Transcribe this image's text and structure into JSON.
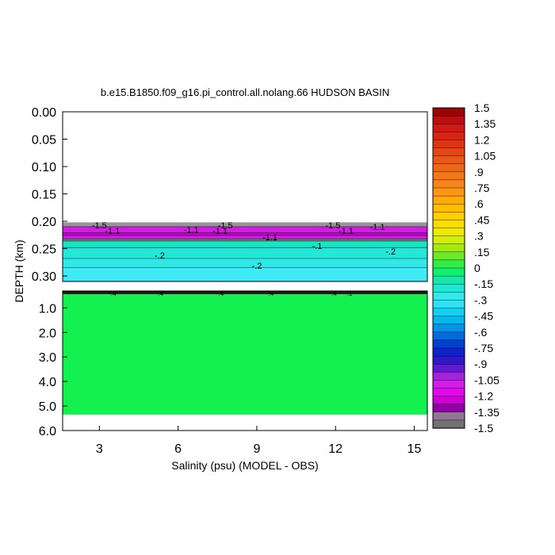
{
  "chart_data": {
    "type": "heatmap",
    "title": "b.e15.B1850.f09_g16.pi_control.all.nolang.66 HUDSON BASIN",
    "xlabel": "Salinity (psu) (MODEL - OBS)",
    "ylabel": "DEPTH (km)",
    "xlim": [
      1.6,
      15.5
    ],
    "x_ticks": [
      "3",
      "6",
      "9",
      "12",
      "15"
    ],
    "x_tick_values": [
      3,
      6,
      9,
      12,
      15
    ],
    "upper_panel": {
      "ylim": [
        0.0,
        0.31
      ],
      "y_ticks": [
        "0.00",
        "0.05",
        "0.10",
        "0.15",
        "0.20",
        "0.25",
        "0.30"
      ],
      "y_tick_values": [
        0.0,
        0.05,
        0.1,
        0.15,
        0.2,
        0.25,
        0.3
      ],
      "bands": [
        {
          "top": 0.202,
          "bottom": 0.21,
          "value": -1.4
        },
        {
          "top": 0.21,
          "bottom": 0.221,
          "value": -1.1
        },
        {
          "top": 0.221,
          "bottom": 0.226,
          "value": -1.25
        },
        {
          "top": 0.226,
          "bottom": 0.232,
          "value": -1.1
        },
        {
          "top": 0.232,
          "bottom": 0.236,
          "value": -1.45
        },
        {
          "top": 0.236,
          "bottom": 0.248,
          "value": -0.15
        },
        {
          "top": 0.248,
          "bottom": 0.268,
          "value": -0.2
        },
        {
          "top": 0.268,
          "bottom": 0.285,
          "value": -0.25
        },
        {
          "top": 0.285,
          "bottom": 0.31,
          "value": -0.3
        }
      ],
      "contour_labels": [
        {
          "x": 3.0,
          "y": 0.207,
          "text": "-1.5"
        },
        {
          "x": 3.5,
          "y": 0.217,
          "text": "-1.1"
        },
        {
          "x": 6.5,
          "y": 0.215,
          "text": "-1.1"
        },
        {
          "x": 7.8,
          "y": 0.207,
          "text": "-1.5"
        },
        {
          "x": 7.6,
          "y": 0.217,
          "text": "-1.1"
        },
        {
          "x": 9.5,
          "y": 0.229,
          "text": "-1.1"
        },
        {
          "x": 11.9,
          "y": 0.207,
          "text": "-1.5"
        },
        {
          "x": 12.4,
          "y": 0.217,
          "text": "-1.1"
        },
        {
          "x": 13.6,
          "y": 0.21,
          "text": "-1.1"
        },
        {
          "x": 5.3,
          "y": 0.262,
          "text": "-.2"
        },
        {
          "x": 9.0,
          "y": 0.281,
          "text": "-.2"
        },
        {
          "x": 14.1,
          "y": 0.255,
          "text": "-.2"
        },
        {
          "x": 11.3,
          "y": 0.245,
          "text": "-.1"
        }
      ]
    },
    "lower_panel": {
      "ylim": [
        0.31,
        6.0
      ],
      "y_ticks": [
        "1.0",
        "2.0",
        "3.0",
        "4.0",
        "5.0",
        "6.0"
      ],
      "y_tick_values": [
        1.0,
        2.0,
        3.0,
        4.0,
        5.0,
        6.0
      ],
      "fill_value": 0.0,
      "data_bottom": 5.35,
      "surface_contour_labels": [
        {
          "x": 3.5,
          "text": "-.4"
        },
        {
          "x": 5.3,
          "text": "-.4"
        },
        {
          "x": 7.6,
          "text": "-.4"
        },
        {
          "x": 9.5,
          "text": "-.4"
        },
        {
          "x": 11.9,
          "text": "-.4"
        },
        {
          "x": 12.5,
          "text": "-.1"
        }
      ]
    },
    "colorbar": {
      "range": [
        -1.5,
        1.5
      ],
      "step": 0.075,
      "labels": [
        "1.5",
        "1.35",
        "1.2",
        "1.05",
        ".9",
        ".75",
        ".6",
        ".45",
        ".3",
        ".15",
        "0",
        "-.15",
        "-.3",
        "-.45",
        "-.6",
        "-.75",
        "-.9",
        "-1.05",
        "-1.2",
        "-1.35",
        "-1.5"
      ],
      "label_values": [
        1.5,
        1.35,
        1.2,
        1.05,
        0.9,
        0.75,
        0.6,
        0.45,
        0.3,
        0.15,
        0,
        -0.15,
        -0.3,
        -0.45,
        -0.6,
        -0.75,
        -0.9,
        -1.05,
        -1.2,
        -1.35,
        -1.5
      ]
    }
  }
}
